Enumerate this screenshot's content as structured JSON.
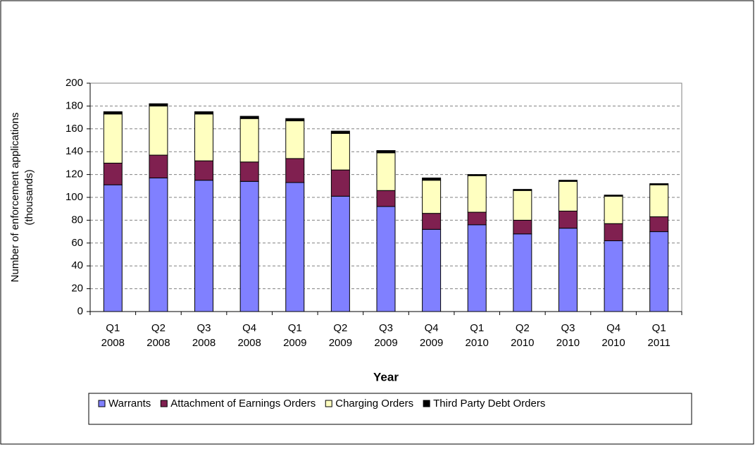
{
  "chart_data": {
    "type": "stacked_bar",
    "x_label": "Year",
    "y_label": [
      "Number of enforcement applications",
      "(thousands)"
    ],
    "categories": [
      "Q1 2008",
      "Q2 2008",
      "Q3 2008",
      "Q4 2008",
      "Q1 2009",
      "Q2 2009",
      "Q3 2009",
      "Q4 2009",
      "Q1 2010",
      "Q2 2010",
      "Q3 2010",
      "Q4 2010",
      "Q1 2011"
    ],
    "series": [
      {
        "name": "Warrants",
        "color": "#8080ff",
        "values": [
          111,
          117,
          115,
          114,
          113,
          101,
          92,
          72,
          76,
          68,
          73,
          62,
          70
        ]
      },
      {
        "name": "Attachment of Earnings Orders",
        "color": "#802050",
        "values": [
          19,
          20,
          17,
          17,
          21,
          23,
          14,
          14,
          11,
          12,
          15,
          15,
          13
        ]
      },
      {
        "name": "Charging Orders",
        "color": "#ffffc0",
        "values": [
          43,
          43,
          41,
          38,
          33,
          32,
          33,
          29,
          32,
          26,
          26,
          24,
          28
        ]
      },
      {
        "name": "Third Party Debt Orders",
        "color": "#000000",
        "values": [
          2,
          2,
          2,
          2,
          2,
          2,
          2,
          2,
          1,
          1,
          1,
          1,
          1
        ]
      }
    ],
    "ylim": [
      0,
      200
    ],
    "yticks": [
      0,
      20,
      40,
      60,
      80,
      100,
      120,
      140,
      160,
      180,
      200
    ],
    "grid": true
  }
}
